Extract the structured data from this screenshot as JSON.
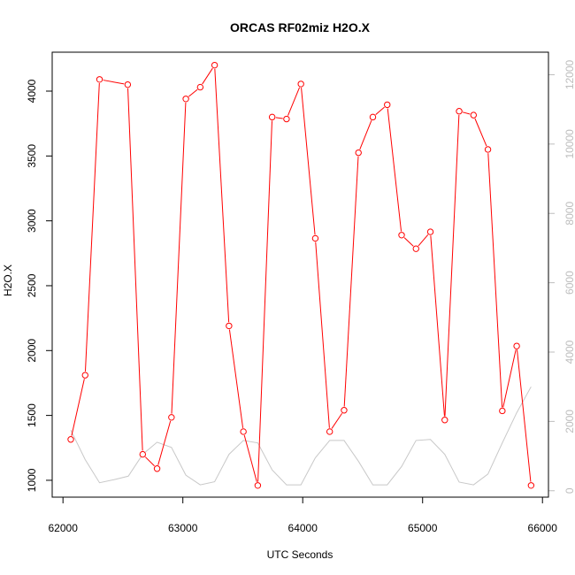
{
  "chart_data": {
    "type": "line",
    "title": "ORCAS RF02miz H2O.X",
    "xlabel": "UTC Seconds",
    "ylabel": "H2O.X",
    "xlim": [
      61910,
      66050
    ],
    "ylim": [
      870,
      4300
    ],
    "y2lim": [
      -185,
      12650
    ],
    "x_ticks": [
      62000,
      63000,
      64000,
      65000,
      66000
    ],
    "y_ticks": [
      1000,
      1500,
      2000,
      2500,
      3000,
      3500,
      4000
    ],
    "y2_ticks": [
      0,
      2000,
      4000,
      6000,
      8000,
      10000,
      12000
    ],
    "grid": false,
    "series": [
      {
        "axis": "left",
        "color": "#ff0000",
        "marker": "open-circle",
        "x": [
          62065,
          62185,
          62305,
          62540,
          62665,
          62785,
          62905,
          63025,
          63145,
          63265,
          63385,
          63505,
          63625,
          63745,
          63865,
          63985,
          64105,
          64225,
          64345,
          64465,
          64585,
          64705,
          64825,
          64945,
          65065,
          65185,
          65305,
          65425,
          65545,
          65665,
          65785,
          65905
        ],
        "y": [
          1315,
          1810,
          4090,
          4050,
          1200,
          1090,
          1485,
          3940,
          4030,
          4200,
          2190,
          1375,
          960,
          3800,
          3785,
          4055,
          2865,
          1375,
          1540,
          3525,
          3800,
          3895,
          2890,
          2785,
          2915,
          1465,
          3845,
          3815,
          3550,
          1535,
          2035,
          960
        ]
      },
      {
        "axis": "right",
        "color": "#c8c8c8",
        "marker": "none",
        "x": [
          62065,
          62185,
          62305,
          62425,
          62545,
          62665,
          62785,
          62905,
          63025,
          63145,
          63265,
          63385,
          63505,
          63625,
          63745,
          63865,
          63985,
          64105,
          64225,
          64345,
          64465,
          64585,
          64705,
          64825,
          64945,
          65065,
          65185,
          65305,
          65425,
          65545,
          65665,
          65785,
          65905
        ],
        "y": [
          1750,
          900,
          230,
          320,
          420,
          1050,
          1400,
          1250,
          450,
          170,
          260,
          1050,
          1450,
          1380,
          600,
          170,
          170,
          950,
          1450,
          1450,
          850,
          170,
          170,
          700,
          1450,
          1480,
          1050,
          250,
          170,
          480,
          1380,
          2250,
          3000
        ]
      }
    ]
  }
}
